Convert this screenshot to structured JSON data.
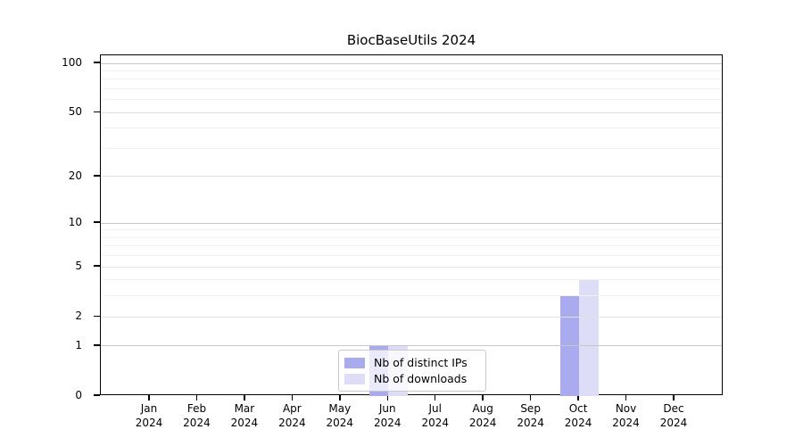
{
  "chart_data": {
    "type": "bar",
    "title": "BiocBaseUtils 2024",
    "categories": [
      "Jan",
      "Feb",
      "Mar",
      "Apr",
      "May",
      "Jun",
      "Jul",
      "Aug",
      "Sep",
      "Oct",
      "Nov",
      "Dec"
    ],
    "category_year": "2024",
    "series": [
      {
        "name": "Nb of distinct IPs",
        "key": "distinct-ips",
        "color": "#aaaaee",
        "values": [
          0,
          0,
          0,
          0,
          0,
          1,
          0,
          0,
          0,
          3,
          0,
          0
        ]
      },
      {
        "name": "Nb of downloads",
        "key": "downloads",
        "color": "#ddddf7",
        "values": [
          0,
          0,
          0,
          0,
          0,
          1,
          0,
          0,
          0,
          4,
          0,
          0
        ]
      }
    ],
    "y_scale": "log1p",
    "ylim": [
      0,
      100
    ],
    "y_ticks": [
      0,
      1,
      2,
      5,
      10,
      20,
      50,
      100
    ],
    "y_decade_gridlines": [
      1,
      10,
      100
    ],
    "y_major_gridlines": [
      2,
      5,
      20,
      50
    ],
    "y_minor_gridlines": [
      3,
      4,
      6,
      7,
      8,
      9,
      30,
      40,
      60,
      70,
      80,
      90
    ],
    "grid": "on",
    "legend_position": "bottom-center",
    "xlabel": "",
    "ylabel": ""
  },
  "colors": {
    "grid_decade": "#c6c6c6",
    "grid_major": "#e2e2e2",
    "grid_minor": "#f2f2f2",
    "axis_frame": "#000000",
    "text": "#000000",
    "legend_border": "#c9c9c9"
  }
}
